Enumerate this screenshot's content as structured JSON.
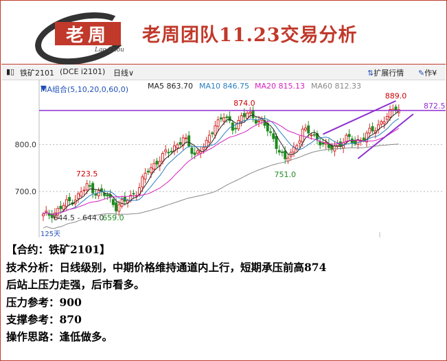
{
  "header": {
    "title": "老周团队11.23交易分析",
    "logo_text": "老周",
    "logo_signature": "Lao Zhou",
    "logo_color": "#c0392b"
  },
  "toolbar": {
    "symbol": "铁矿2101",
    "code": "(DCE i2101)",
    "period": "日线",
    "expand_label": "扩展行情",
    "draw_label": "作¥"
  },
  "ma": {
    "group_label": "MA组合(5,10,20,0,60,0)",
    "ma5": "MA5 863.70",
    "ma10": "MA10 846.75",
    "ma20": "MA20 815.13",
    "ma60": "MA60 812.33",
    "colors": {
      "ma5": "#222222",
      "ma10": "#2a7fbf",
      "ma20": "#d61fbf",
      "ma60": "#888888",
      "group": "#1f4fb5"
    }
  },
  "chart_data": {
    "type": "candlestick",
    "y_ticks": [
      "800.0",
      "700.0"
    ],
    "y_tick_values": [
      800,
      700
    ],
    "ylim": [
      602,
      912
    ],
    "horizontal_line": {
      "value": 872.5,
      "label": "872.5",
      "color": "#8e2fd0"
    },
    "annotations": [
      {
        "text": "723.5",
        "bar": 15,
        "value": 723.5,
        "color": "#cc0000",
        "pos": "above"
      },
      {
        "text": "644.5 - 644.0",
        "bar": 2,
        "value": 644.5,
        "color": "#333333",
        "pos": "right"
      },
      {
        "text": "659.0",
        "bar": 24,
        "value": 659.0,
        "color": "#1f8a1f",
        "pos": "below"
      },
      {
        "text": "874.0",
        "bar": 69,
        "value": 874.0,
        "color": "#cc0000",
        "pos": "above"
      },
      {
        "text": "751.0",
        "bar": 83,
        "value": 751.0,
        "color": "#1f8a1f",
        "pos": "below"
      },
      {
        "text": "889.0",
        "bar": 121,
        "value": 889.0,
        "color": "#cc0000",
        "pos": "above"
      }
    ],
    "corner_label": "125天",
    "up_color": "#d42a2a",
    "down_color": "#1f8a1f",
    "channel": {
      "color": "#8e2fd0",
      "upper": [
        [
          96,
          822
        ],
        [
          121,
          893
        ]
      ],
      "lower": [
        [
          108,
          770
        ],
        [
          127,
          865
        ]
      ]
    },
    "close_anchors": [
      [
        0,
        648
      ],
      [
        4,
        655
      ],
      [
        8,
        675
      ],
      [
        12,
        690
      ],
      [
        15,
        712
      ],
      [
        18,
        700
      ],
      [
        22,
        690
      ],
      [
        25,
        668
      ],
      [
        28,
        678
      ],
      [
        32,
        700
      ],
      [
        36,
        745
      ],
      [
        40,
        770
      ],
      [
        44,
        790
      ],
      [
        48,
        812
      ],
      [
        52,
        780
      ],
      [
        56,
        800
      ],
      [
        59,
        845
      ],
      [
        62,
        860
      ],
      [
        65,
        835
      ],
      [
        68,
        858
      ],
      [
        70,
        865
      ],
      [
        72,
        858
      ],
      [
        75,
        850
      ],
      [
        78,
        820
      ],
      [
        81,
        790
      ],
      [
        83,
        765
      ],
      [
        86,
        790
      ],
      [
        89,
        830
      ],
      [
        92,
        822
      ],
      [
        95,
        808
      ],
      [
        98,
        790
      ],
      [
        101,
        800
      ],
      [
        104,
        812
      ],
      [
        107,
        805
      ],
      [
        110,
        815
      ],
      [
        113,
        830
      ],
      [
        116,
        848
      ],
      [
        119,
        865
      ],
      [
        121,
        880
      ],
      [
        122,
        878
      ]
    ]
  },
  "analysis": {
    "contract": "【合约：铁矿2101】",
    "tech": "技术分析：日线级别，中期价格维持通道内上行，短期承压前高874",
    "tech2": "后站上压力走强，后市看多。",
    "resistance": "压力参考：900",
    "support": "支撑参考：870",
    "strategy": "操作思路：逢低做多。"
  }
}
